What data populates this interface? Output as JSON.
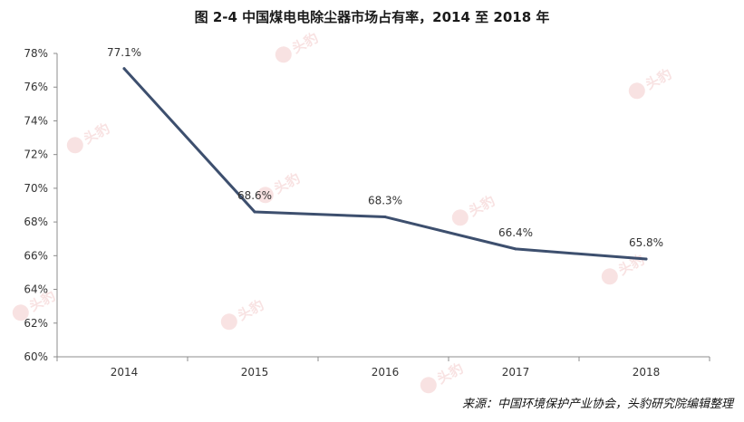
{
  "title": "图 2-4 中国煤电电除尘器市场占有率，2014 至 2018 年",
  "source": "来源：中国环境保护产业协会，头豹研究院编辑整理",
  "watermark": "头豹",
  "colors": {
    "line": "#3d4f6e",
    "axis": "#8c8c8c",
    "text": "#333333",
    "watermark": "#f4cccc"
  },
  "chart_data": {
    "type": "line",
    "title": "图 2-4 中国煤电电除尘器市场占有率，2014 至 2018 年",
    "xlabel": "",
    "ylabel": "",
    "categories": [
      "2014",
      "2015",
      "2016",
      "2017",
      "2018"
    ],
    "series": [
      {
        "values": [
          77.1,
          68.6,
          68.3,
          66.4,
          65.8
        ],
        "labels": [
          "77.1%",
          "68.6%",
          "68.3%",
          "66.4%",
          "65.8%"
        ]
      }
    ],
    "ylim": [
      60,
      78
    ],
    "yticks": [
      60,
      62,
      64,
      66,
      68,
      70,
      72,
      74,
      76,
      78
    ],
    "ytick_labels": [
      "60%",
      "62%",
      "64%",
      "66%",
      "68%",
      "70%",
      "72%",
      "74%",
      "76%",
      "78%"
    ],
    "grid": false,
    "legend": "none"
  }
}
